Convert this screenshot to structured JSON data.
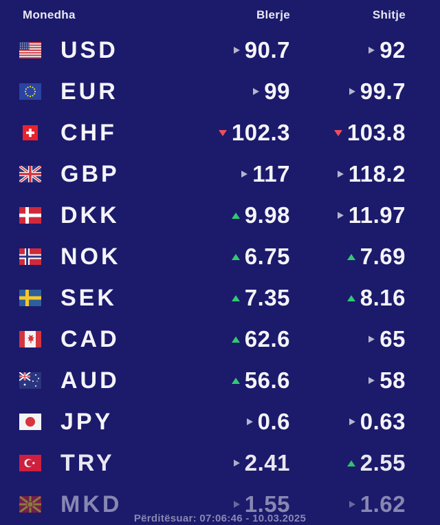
{
  "widget": {
    "columns": {
      "currency": "Monedha",
      "buy": "Blerje",
      "sell": "Shitje"
    },
    "footer": {
      "updated_text": "Përditësuar: 07:06:46 - 10.03.2025"
    },
    "colors": {
      "background": "#1c1a6b",
      "text": "#f4f4f9",
      "trend_up": "#2fcb71",
      "trend_down": "#ea4f5e",
      "trend_flat": "#b5b5cc"
    },
    "rows": [
      {
        "code": "USD",
        "flag_icon": "usd-flag-icon",
        "flag": "us",
        "buy": {
          "value": "90.7",
          "trend": "flat"
        },
        "sell": {
          "value": "92",
          "trend": "flat"
        }
      },
      {
        "code": "EUR",
        "flag_icon": "eur-flag-icon",
        "flag": "eu",
        "buy": {
          "value": "99",
          "trend": "flat"
        },
        "sell": {
          "value": "99.7",
          "trend": "flat"
        }
      },
      {
        "code": "CHF",
        "flag_icon": "chf-flag-icon",
        "flag": "ch",
        "buy": {
          "value": "102.3",
          "trend": "down"
        },
        "sell": {
          "value": "103.8",
          "trend": "down"
        }
      },
      {
        "code": "GBP",
        "flag_icon": "gbp-flag-icon",
        "flag": "gb",
        "buy": {
          "value": "117",
          "trend": "flat"
        },
        "sell": {
          "value": "118.2",
          "trend": "flat"
        }
      },
      {
        "code": "DKK",
        "flag_icon": "dkk-flag-icon",
        "flag": "dk",
        "buy": {
          "value": "9.98",
          "trend": "up"
        },
        "sell": {
          "value": "11.97",
          "trend": "flat"
        }
      },
      {
        "code": "NOK",
        "flag_icon": "nok-flag-icon",
        "flag": "no",
        "buy": {
          "value": "6.75",
          "trend": "up"
        },
        "sell": {
          "value": "7.69",
          "trend": "up"
        }
      },
      {
        "code": "SEK",
        "flag_icon": "sek-flag-icon",
        "flag": "se",
        "buy": {
          "value": "7.35",
          "trend": "up"
        },
        "sell": {
          "value": "8.16",
          "trend": "up"
        }
      },
      {
        "code": "CAD",
        "flag_icon": "cad-flag-icon",
        "flag": "ca",
        "buy": {
          "value": "62.6",
          "trend": "up"
        },
        "sell": {
          "value": "65",
          "trend": "flat"
        }
      },
      {
        "code": "AUD",
        "flag_icon": "aud-flag-icon",
        "flag": "au",
        "buy": {
          "value": "56.6",
          "trend": "up"
        },
        "sell": {
          "value": "58",
          "trend": "flat"
        }
      },
      {
        "code": "JPY",
        "flag_icon": "jpy-flag-icon",
        "flag": "jp",
        "buy": {
          "value": "0.6",
          "trend": "flat"
        },
        "sell": {
          "value": "0.63",
          "trend": "flat"
        }
      },
      {
        "code": "TRY",
        "flag_icon": "try-flag-icon",
        "flag": "tr",
        "buy": {
          "value": "2.41",
          "trend": "flat"
        },
        "sell": {
          "value": "2.55",
          "trend": "up"
        }
      },
      {
        "code": "MKD",
        "flag_icon": "mkd-flag-icon",
        "flag": "mk",
        "buy": {
          "value": "1.55",
          "trend": "flat"
        },
        "sell": {
          "value": "1.62",
          "trend": "flat"
        }
      }
    ]
  }
}
